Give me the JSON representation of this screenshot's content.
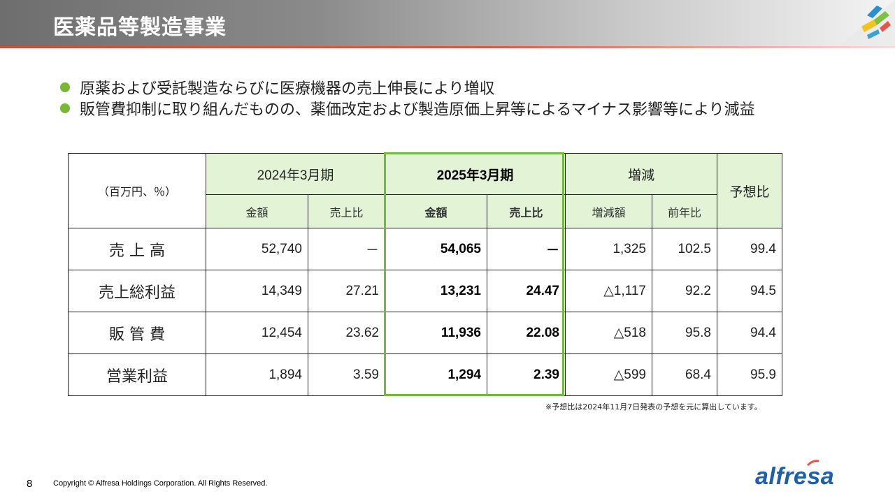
{
  "header": {
    "title": "医薬品等製造事業"
  },
  "bullets": [
    "原薬および受託製造ならびに医療機器の売上伸長により増収",
    "販管費抑制に取り組んだものの、薬価改定および製造原価上昇等によるマイナス影響等により減益"
  ],
  "table": {
    "unit_label": "（百万円、％）",
    "group_headers": [
      "2024年3月期",
      "2025年3月期",
      "増減",
      "予想比"
    ],
    "sub_headers": [
      "金額",
      "売上比",
      "金額",
      "売上比",
      "増減額",
      "前年比"
    ],
    "rows": [
      {
        "label": "売 上 高",
        "cells": [
          "52,740",
          "－",
          "54,065",
          "－",
          "1,325",
          "102.5",
          "99.4"
        ]
      },
      {
        "label": "売上総利益",
        "cells": [
          "14,349",
          "27.21",
          "13,231",
          "24.47",
          "△1,117",
          "92.2",
          "94.5"
        ]
      },
      {
        "label": "販 管 費",
        "cells": [
          "12,454",
          "23.62",
          "11,936",
          "22.08",
          "△518",
          "95.8",
          "94.4"
        ]
      },
      {
        "label": "営業利益",
        "cells": [
          "1,894",
          "3.59",
          "1,294",
          "2.39",
          "△599",
          "68.4",
          "95.9"
        ]
      }
    ],
    "highlight_color": "#72bb3a",
    "header_fill": "#e3f4d6"
  },
  "footnote": "※予想比は2024年11月7日発表の予想を元に算出しています。",
  "footer": {
    "page_number": "8",
    "copyright": "Copyright © Alfresa Holdings Corporation. All Rights Reserved.",
    "brand": "alfresa"
  }
}
